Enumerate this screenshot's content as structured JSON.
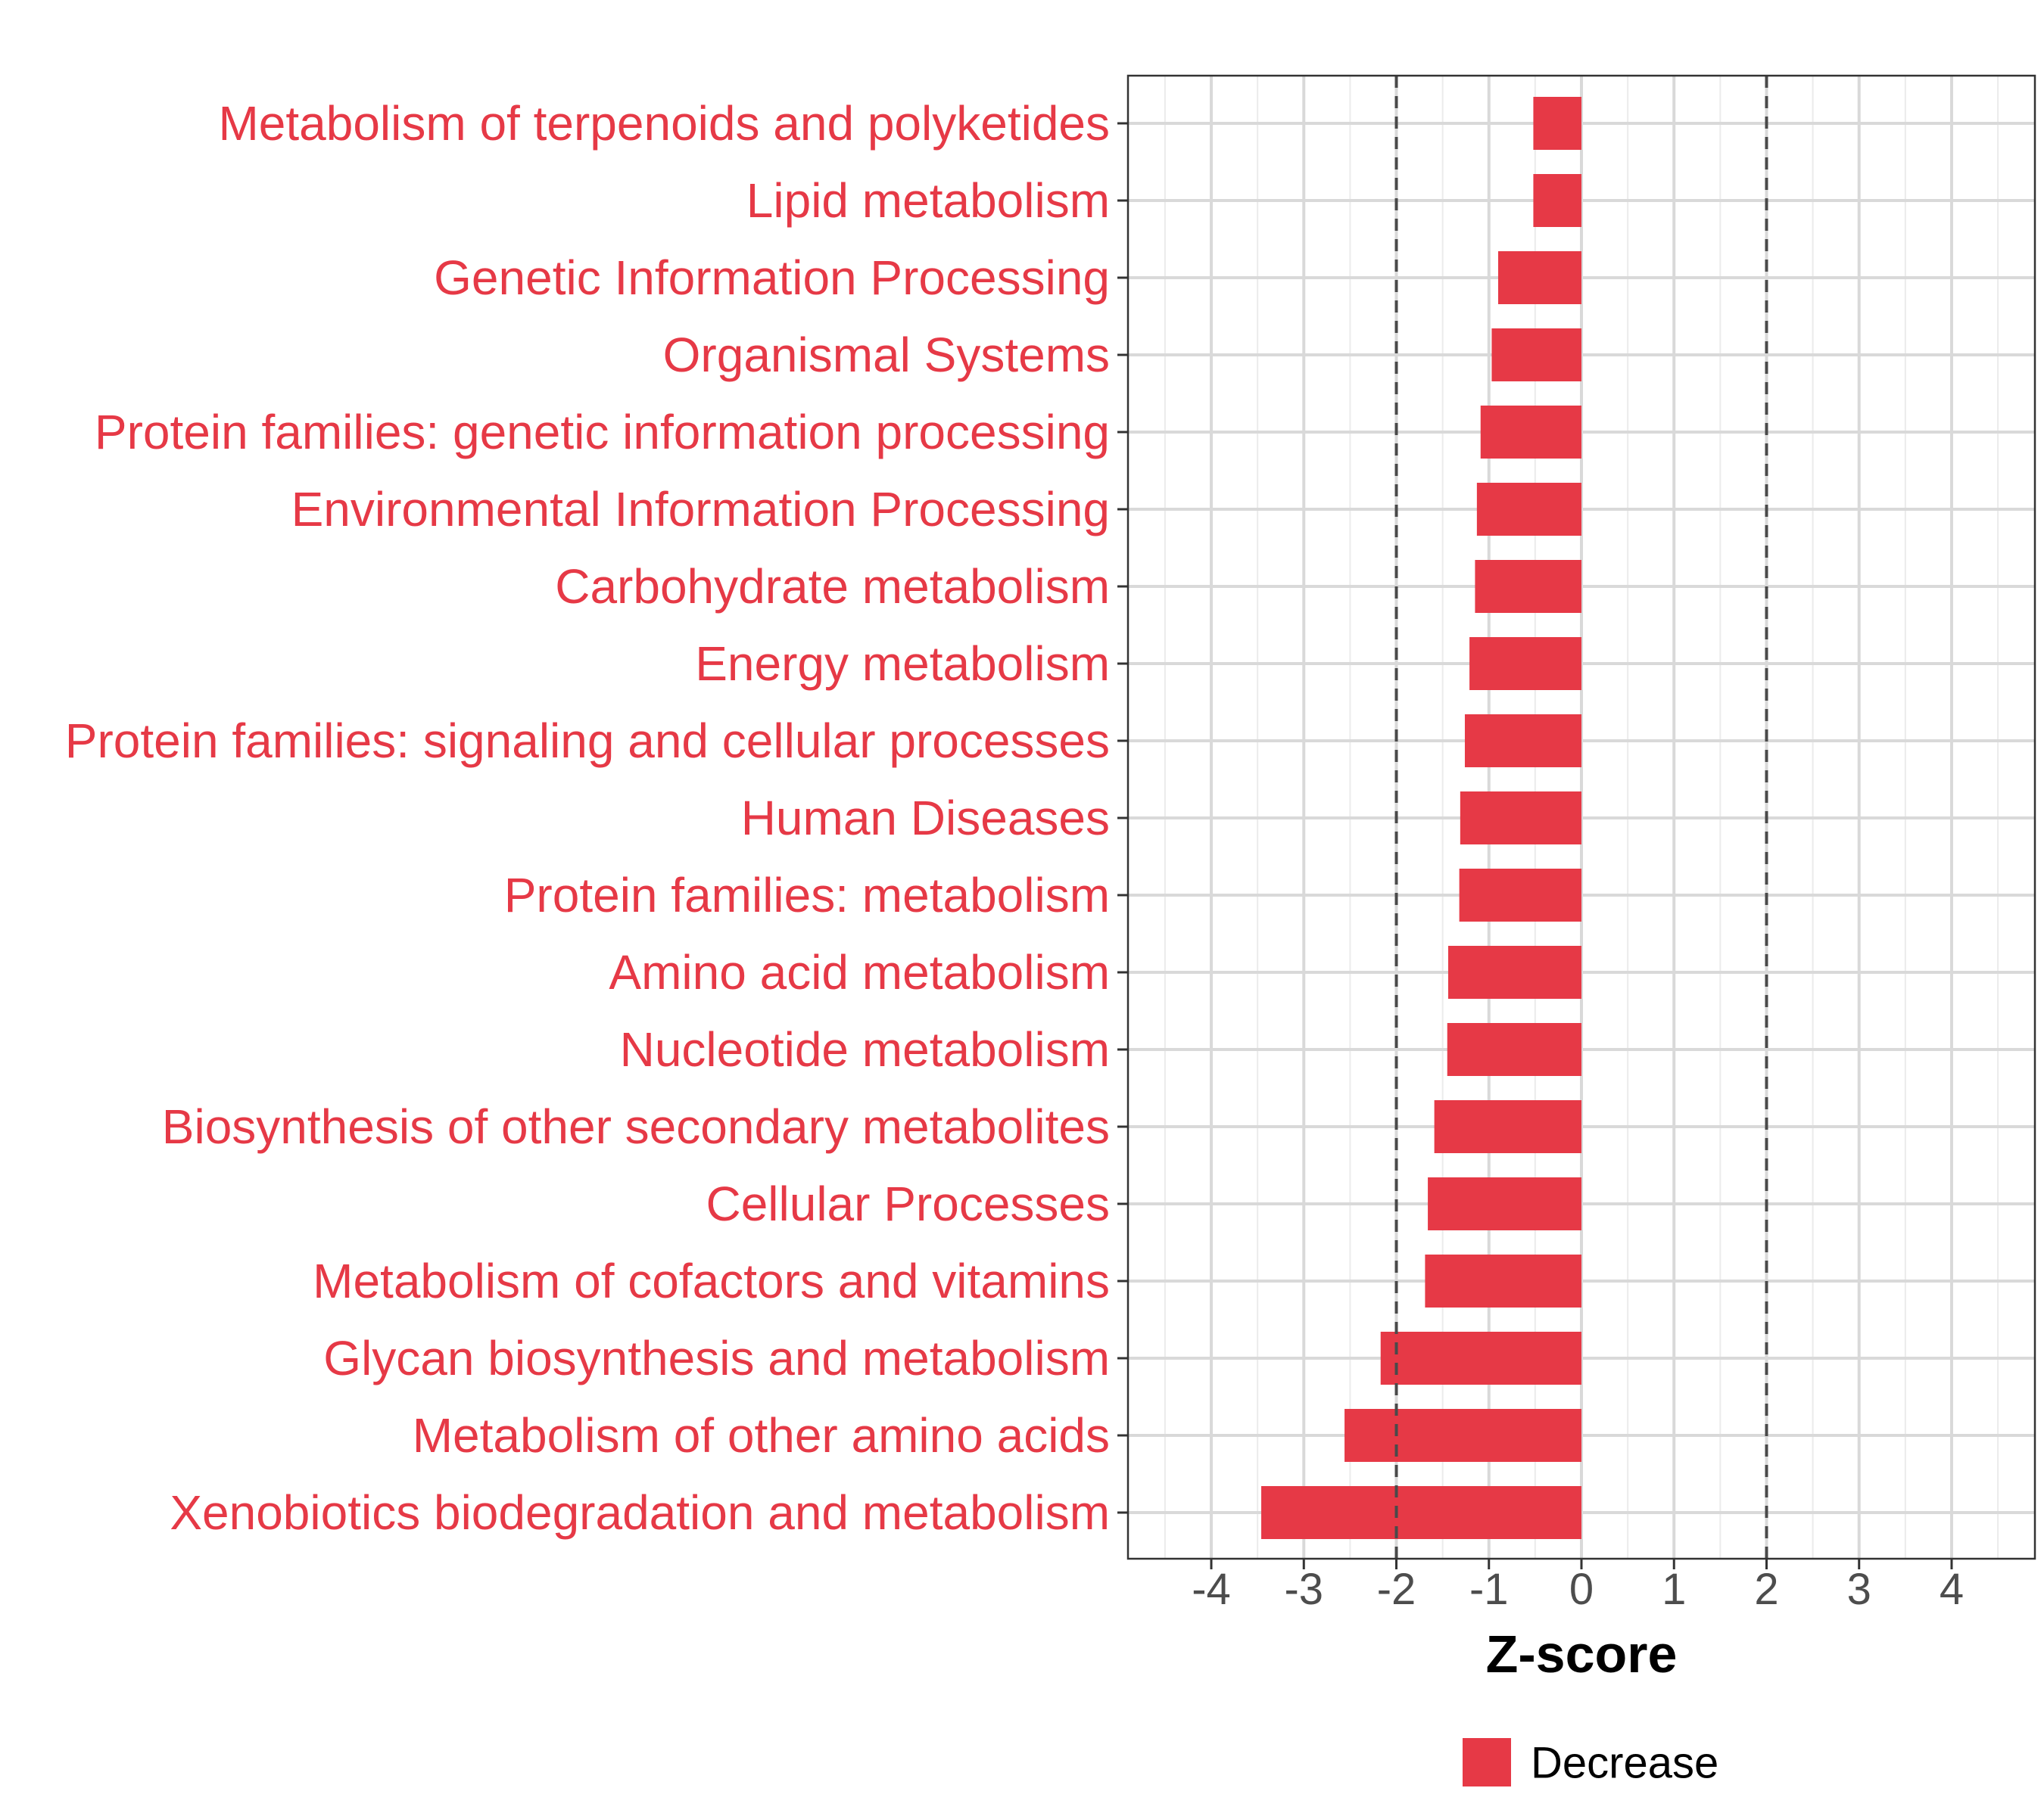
{
  "chart_data": {
    "type": "bar",
    "orientation": "horizontal",
    "title": "",
    "xlabel": "Z-score",
    "ylabel": "",
    "xlim": [
      -4.9,
      4.9
    ],
    "xticks": [
      -4,
      -3,
      -2,
      -1,
      0,
      1,
      2,
      3,
      4
    ],
    "xtick_labels": [
      "-4",
      "-3",
      "-2",
      "-1",
      "0",
      "1",
      "2",
      "3",
      "4"
    ],
    "reference_lines": [
      -2,
      2
    ],
    "grid": true,
    "bar_color": "#e63946",
    "label_color": "#e63946",
    "categories": [
      "Metabolism of terpenoids and polyketides",
      "Lipid metabolism",
      "Genetic Information Processing",
      "Organismal Systems",
      "Protein families: genetic information processing",
      "Environmental Information Processing",
      "Carbohydrate metabolism",
      "Energy metabolism",
      "Protein families: signaling and cellular processes",
      "Human Diseases",
      "Protein families: metabolism",
      "Amino acid metabolism",
      "Nucleotide metabolism",
      "Biosynthesis of other secondary metabolites",
      "Cellular Processes",
      "Metabolism of cofactors and vitamins",
      "Glycan biosynthesis and metabolism",
      "Metabolism of other amino acids",
      "Xenobiotics biodegradation and metabolism"
    ],
    "values": [
      -0.52,
      -0.52,
      -0.9,
      -0.97,
      -1.09,
      -1.13,
      -1.15,
      -1.21,
      -1.26,
      -1.31,
      -1.32,
      -1.44,
      -1.45,
      -1.59,
      -1.66,
      -1.69,
      -2.17,
      -2.56,
      -3.46
    ],
    "legend": {
      "position": "bottom",
      "entries": [
        {
          "label": "Decrease",
          "color": "#e63946"
        }
      ]
    }
  }
}
